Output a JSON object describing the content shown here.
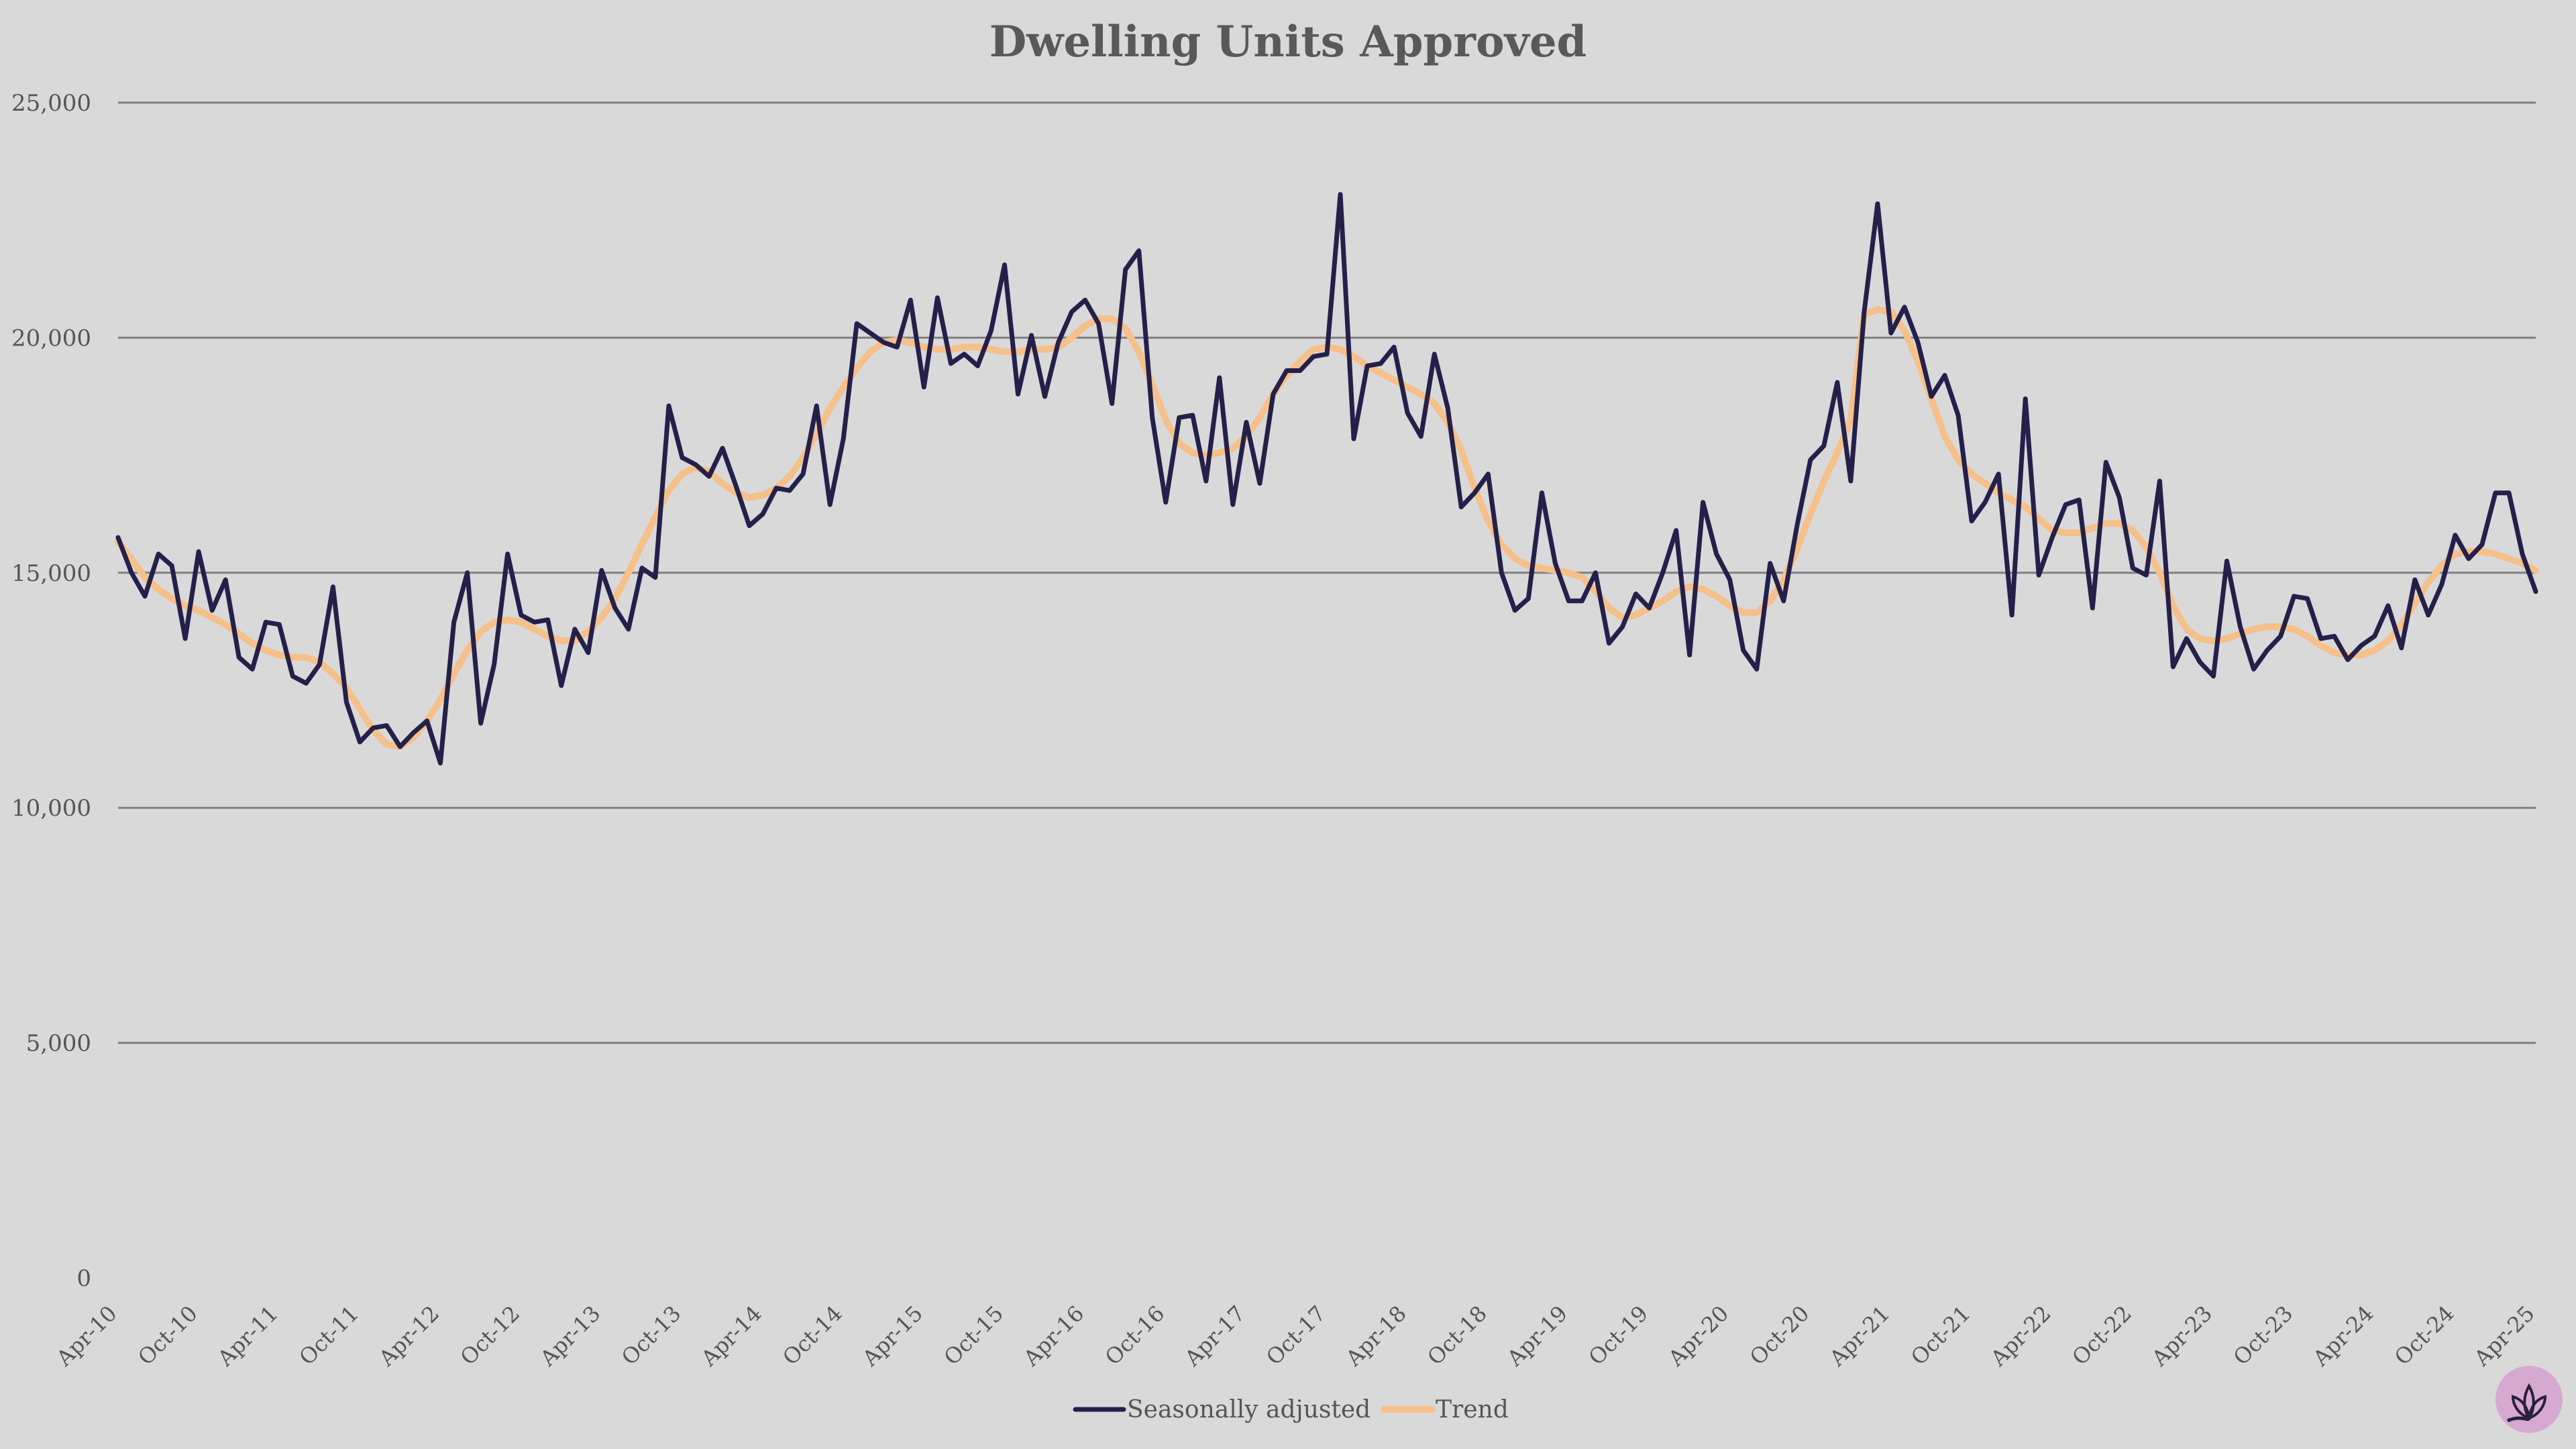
{
  "chart_data": {
    "type": "line",
    "title": "Dwelling Units Approved",
    "xlabel": "",
    "ylabel": "",
    "ylim": [
      0,
      25000
    ],
    "yticks": [
      0,
      5000,
      10000,
      15000,
      20000,
      25000
    ],
    "ytick_labels": [
      "0",
      "5,000",
      "10,000",
      "15,000",
      "20,000",
      "25,000"
    ],
    "x_start": "2010-04",
    "x_end": "2025-04",
    "xtick_labels": [
      "Apr-10",
      "Oct-10",
      "Apr-11",
      "Oct-11",
      "Apr-12",
      "Oct-12",
      "Apr-13",
      "Oct-13",
      "Apr-14",
      "Oct-14",
      "Apr-15",
      "Oct-15",
      "Apr-16",
      "Oct-16",
      "Apr-17",
      "Oct-17",
      "Apr-18",
      "Oct-18",
      "Apr-19",
      "Oct-19",
      "Apr-20",
      "Oct-20",
      "Apr-21",
      "Oct-21",
      "Apr-22",
      "Oct-22",
      "Apr-23",
      "Oct-23",
      "Apr-24",
      "Oct-24",
      "Apr-25"
    ],
    "grid": true,
    "legend_position": "bottom-center",
    "series": [
      {
        "name": "Seasonally adjusted",
        "color": "#24204a",
        "values": [
          15750,
          15000,
          14500,
          15400,
          15150,
          13600,
          15450,
          14200,
          14850,
          13200,
          12950,
          13950,
          13900,
          12800,
          12650,
          13050,
          14700,
          12250,
          11400,
          11700,
          11750,
          11300,
          11600,
          11850,
          10950,
          13950,
          15000,
          11800,
          13050,
          15400,
          14100,
          13950,
          14000,
          12600,
          13800,
          13300,
          15050,
          14250,
          13800,
          15100,
          14900,
          18550,
          17450,
          17300,
          17050,
          17650,
          16850,
          16000,
          16250,
          16800,
          16750,
          17100,
          18550,
          16450,
          17850,
          20300,
          20100,
          19900,
          19800,
          20800,
          18950,
          20850,
          19450,
          19650,
          19400,
          20150,
          21550,
          18800,
          20050,
          18750,
          19900,
          20550,
          20800,
          20300,
          18600,
          21450,
          21850,
          18300,
          16500,
          18300,
          18350,
          16950,
          19150,
          16450,
          18200,
          16900,
          18800,
          19300,
          19300,
          19600,
          19650,
          23050,
          17850,
          19400,
          19450,
          19800,
          18400,
          17900,
          19650,
          18500,
          16400,
          16700,
          17100,
          15000,
          14200,
          14450,
          16700,
          15200,
          14400,
          14400,
          15000,
          13500,
          13850,
          14550,
          14250,
          15000,
          15900,
          13250,
          16500,
          15400,
          14850,
          13350,
          12950,
          15200,
          14400,
          16000,
          17400,
          17700,
          19050,
          16950,
          20550,
          22850,
          20100,
          20650,
          19900,
          18750,
          19200,
          18350,
          16100,
          16500,
          17100,
          14100,
          18700,
          14950,
          15750,
          16450,
          16550,
          14250,
          17350,
          16600,
          15100,
          14950,
          16950,
          13000,
          13600,
          13100,
          12800,
          15250,
          13850,
          12950,
          13350,
          13650,
          14500,
          14450,
          13600,
          13650,
          13150,
          13450,
          13650,
          14300,
          13400,
          14850,
          14100,
          14750,
          15800,
          15300,
          15600,
          16700,
          16700,
          15400,
          14600
        ]
      },
      {
        "name": "Trend",
        "color": "#f5c08a",
        "values": [
          15650,
          15300,
          14900,
          14650,
          14450,
          14300,
          14200,
          14050,
          13900,
          13700,
          13500,
          13350,
          13250,
          13200,
          13200,
          13100,
          12850,
          12550,
          12100,
          11650,
          11350,
          11300,
          11500,
          11850,
          12300,
          12850,
          13350,
          13750,
          13950,
          14000,
          13950,
          13800,
          13650,
          13550,
          13550,
          13750,
          14050,
          14450,
          15000,
          15600,
          16200,
          16750,
          17100,
          17250,
          17150,
          16900,
          16700,
          16600,
          16650,
          16800,
          17050,
          17450,
          17950,
          18500,
          18950,
          19350,
          19700,
          19900,
          19950,
          19900,
          19800,
          19750,
          19750,
          19800,
          19800,
          19750,
          19700,
          19700,
          19750,
          19750,
          19800,
          20000,
          20250,
          20400,
          20400,
          20200,
          19700,
          19000,
          18250,
          17750,
          17550,
          17500,
          17550,
          17650,
          17900,
          18300,
          18800,
          19200,
          19500,
          19750,
          19800,
          19750,
          19600,
          19400,
          19250,
          19100,
          18950,
          18800,
          18600,
          18200,
          17600,
          16800,
          16100,
          15600,
          15300,
          15150,
          15100,
          15050,
          15000,
          14900,
          14600,
          14250,
          14050,
          14100,
          14250,
          14400,
          14600,
          14700,
          14650,
          14500,
          14300,
          14150,
          14150,
          14400,
          14850,
          15500,
          16250,
          16950,
          17550,
          18250,
          20500,
          20600,
          20550,
          20150,
          19500,
          18700,
          17900,
          17400,
          17100,
          16900,
          16700,
          16550,
          16400,
          16150,
          15900,
          15850,
          15850,
          15950,
          16050,
          16050,
          15900,
          15550,
          15000,
          14300,
          13800,
          13600,
          13550,
          13600,
          13700,
          13800,
          13850,
          13850,
          13800,
          13650,
          13450,
          13300,
          13250,
          13250,
          13350,
          13550,
          13900,
          14350,
          14800,
          15150,
          15400,
          15450,
          15450,
          15400,
          15300,
          15200,
          15050
        ]
      }
    ]
  }
}
